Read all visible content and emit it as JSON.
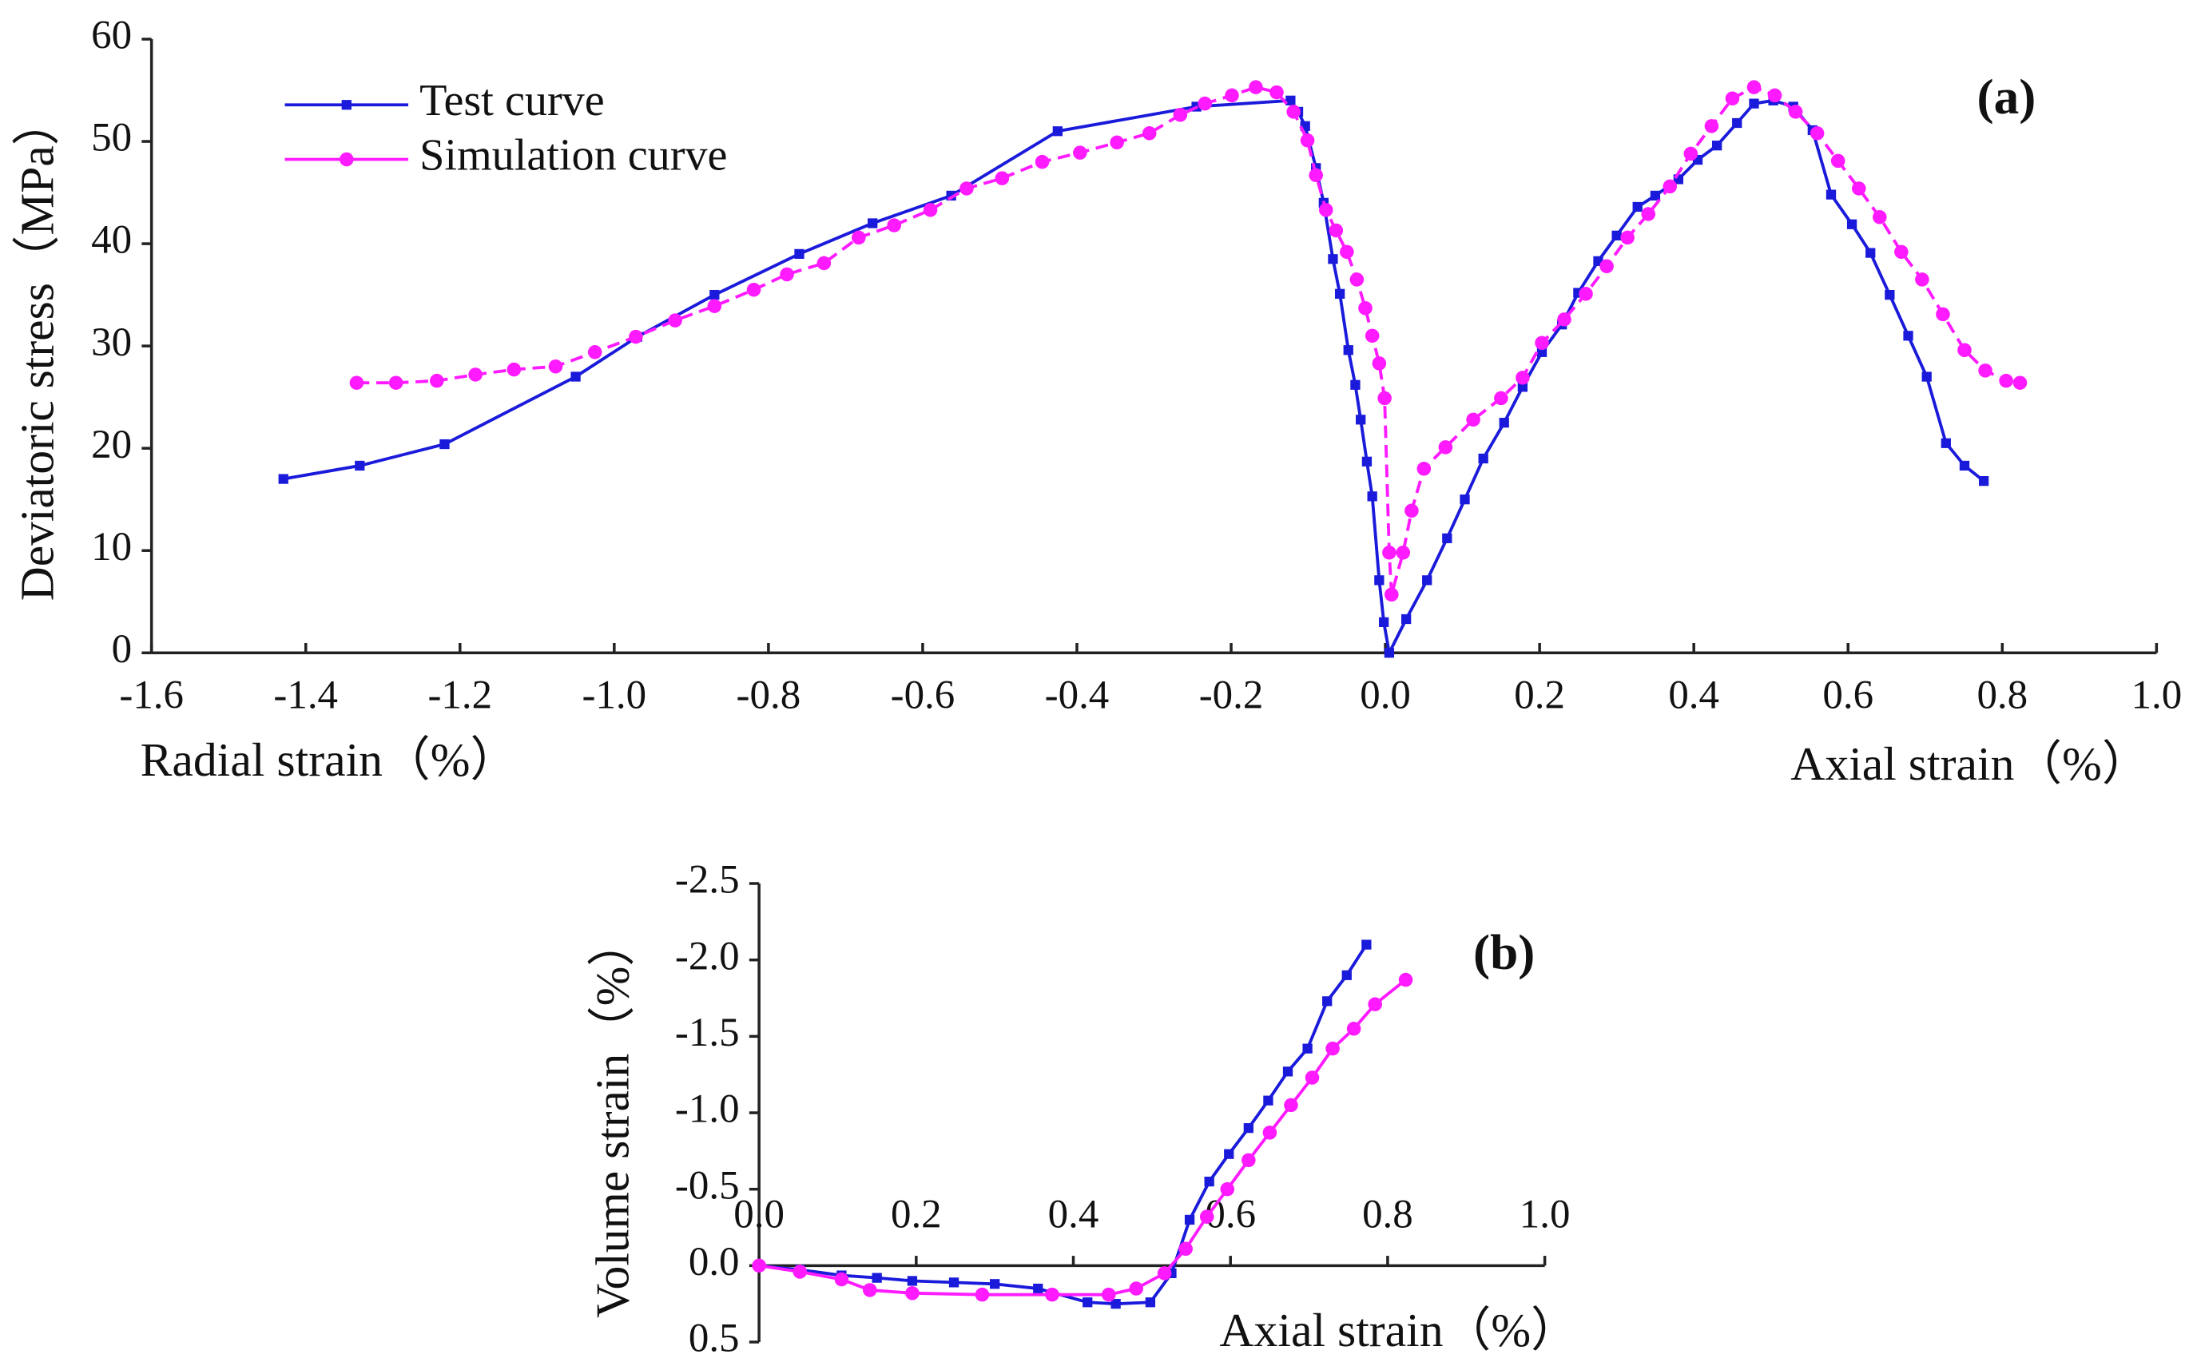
{
  "chart_data": [
    {
      "type": "line",
      "annotation": "(a)",
      "ylabel": "Deviatoric stress（MPa）",
      "xlabel_left": "Radial strain（%）",
      "xlabel_right": "Axial strain（%）",
      "xlim": [
        -1.6,
        1.0
      ],
      "ylim": [
        0,
        60
      ],
      "xticks": [
        -1.6,
        -1.4,
        -1.2,
        {
          "value": -1.0,
          "label": "-1.0"
        },
        -0.8,
        -0.6,
        -0.4,
        -0.2,
        {
          "value": 0.0,
          "label": "0.0"
        },
        0.2,
        0.4,
        0.6,
        0.8,
        {
          "value": 1.0,
          "label": "1.0"
        }
      ],
      "yticks": [
        0,
        10,
        20,
        30,
        40,
        50,
        60
      ],
      "legend": "upper left",
      "series": [
        {
          "name": "Test curve",
          "color": "#1a1adb",
          "marker": "square",
          "dashed": false,
          "x": [
            -1.429,
            -1.33,
            -1.22,
            -1.05,
            -0.97,
            -0.87,
            -0.76,
            -0.665,
            -0.563,
            -0.425,
            -0.245,
            -0.123,
            -0.113,
            -0.104,
            -0.09,
            -0.08,
            -0.068,
            -0.059,
            -0.048,
            -0.039,
            -0.032,
            -0.024,
            -0.017,
            -0.008,
            -0.002,
            0.005,
            0.027,
            0.054,
            0.08,
            0.103,
            0.127,
            0.154,
            0.178,
            0.203,
            0.229,
            0.25,
            0.276,
            0.3,
            0.327,
            0.35,
            0.38,
            0.405,
            0.43,
            0.456,
            0.478,
            0.503,
            0.529,
            0.554,
            0.578,
            0.605,
            0.629,
            0.654,
            0.678,
            0.702,
            0.727,
            0.751,
            0.776
          ],
          "values": [
            17,
            18.3,
            20.4,
            27,
            30.9,
            35,
            39,
            42,
            44.7,
            51,
            53.4,
            54,
            52.9,
            51.5,
            47.4,
            44,
            38.5,
            35.1,
            29.6,
            26.2,
            22.8,
            18.7,
            15.3,
            7.1,
            3,
            0,
            3.3,
            7.1,
            11.2,
            15,
            19,
            22.5,
            26,
            29.4,
            32.1,
            35.2,
            38.3,
            40.8,
            43.6,
            44.7,
            46.3,
            48.2,
            49.6,
            51.8,
            53.7,
            54,
            53.4,
            51.1,
            44.8,
            41.9,
            39.1,
            35,
            31,
            27,
            20.5,
            18.3,
            16.8
          ]
        },
        {
          "name": "Simulation curve",
          "color": "#ff1aff",
          "marker": "circle",
          "dashed": true,
          "x": [
            -1.334,
            -1.283,
            -1.23,
            -1.18,
            -1.13,
            -1.076,
            -1.025,
            -0.972,
            -0.921,
            -0.87,
            -0.819,
            -0.776,
            -0.728,
            -0.683,
            -0.637,
            -0.59,
            -0.543,
            -0.497,
            -0.445,
            -0.396,
            -0.348,
            -0.306,
            -0.266,
            -0.234,
            -0.199,
            -0.168,
            -0.141,
            -0.119,
            -0.101,
            -0.09,
            -0.077,
            -0.064,
            -0.05,
            -0.037,
            -0.026,
            -0.017,
            -0.008,
            -0.001,
            0.005,
            0.008,
            0.023,
            0.034,
            0.05,
            0.078,
            0.114,
            0.15,
            0.178,
            0.203,
            0.232,
            0.26,
            0.287,
            0.314,
            0.341,
            0.369,
            0.396,
            0.423,
            0.45,
            0.478,
            0.505,
            0.532,
            0.56,
            0.587,
            0.614,
            0.641,
            0.669,
            0.696,
            0.723,
            0.751,
            0.778,
            0.805,
            0.823
          ],
          "values": [
            26.4,
            26.4,
            26.6,
            27.2,
            27.7,
            28,
            29.4,
            30.9,
            32.5,
            33.9,
            35.5,
            37,
            38.1,
            40.6,
            41.8,
            43.3,
            45.4,
            46.4,
            48,
            48.9,
            49.9,
            50.8,
            52.6,
            53.7,
            54.5,
            55.3,
            54.8,
            52.9,
            50.1,
            46.7,
            43.3,
            41.3,
            39.2,
            36.5,
            33.7,
            31,
            28.3,
            24.9,
            9.8,
            5.7,
            9.8,
            13.9,
            18,
            20.1,
            22.8,
            24.9,
            26.9,
            30.3,
            32.6,
            35.1,
            37.8,
            40.6,
            42.9,
            45.6,
            48.8,
            51.5,
            54.2,
            55.3,
            54.5,
            52.9,
            50.8,
            48.1,
            45.4,
            42.6,
            39.2,
            36.5,
            33.1,
            29.6,
            27.6,
            26.6,
            26.4
          ]
        }
      ]
    },
    {
      "type": "line",
      "annotation": "(b)",
      "ylabel": "Volume strain（%）",
      "xlabel_right": "Axial strain（%）",
      "xlim": [
        0,
        1.0
      ],
      "ylim": [
        0.5,
        -2.5
      ],
      "xticks": [
        {
          "value": 0,
          "label": "0.0"
        },
        0.2,
        0.4,
        0.6,
        0.8,
        {
          "value": 1.0,
          "label": "1.0"
        }
      ],
      "yticks": [
        -2.5,
        {
          "value": -2.0,
          "label": "-2.0"
        },
        -1.5,
        {
          "value": -1.0,
          "label": "-1.0"
        },
        -0.5,
        {
          "value": 0,
          "label": "0.0"
        },
        0.5
      ],
      "series": [
        {
          "color": "#1a1adb",
          "marker": "square",
          "dashed": false,
          "x": [
            0,
            0.052,
            0.105,
            0.15,
            0.195,
            0.248,
            0.3,
            0.355,
            0.418,
            0.454,
            0.498,
            0.525,
            0.548,
            0.573,
            0.598,
            0.623,
            0.648,
            0.673,
            0.698,
            0.723,
            0.748,
            0.773
          ],
          "values": [
            0,
            0.027,
            0.064,
            0.08,
            0.1,
            0.11,
            0.12,
            0.15,
            0.24,
            0.25,
            0.24,
            0.05,
            -0.3,
            -0.55,
            -0.73,
            -0.9,
            -1.08,
            -1.27,
            -1.42,
            -1.73,
            -1.9,
            -2.1
          ]
        },
        {
          "color": "#ff1aff",
          "marker": "circle",
          "dashed": false,
          "x": [
            0,
            0.052,
            0.105,
            0.141,
            0.195,
            0.284,
            0.373,
            0.445,
            0.48,
            0.516,
            0.543,
            0.57,
            0.596,
            0.623,
            0.65,
            0.677,
            0.704,
            0.73,
            0.757,
            0.784,
            0.823
          ],
          "values": [
            0,
            0.04,
            0.09,
            0.16,
            0.18,
            0.19,
            0.19,
            0.19,
            0.15,
            0.05,
            -0.11,
            -0.32,
            -0.5,
            -0.69,
            -0.87,
            -1.05,
            -1.23,
            -1.42,
            -1.55,
            -1.71,
            -1.87
          ]
        }
      ]
    }
  ]
}
